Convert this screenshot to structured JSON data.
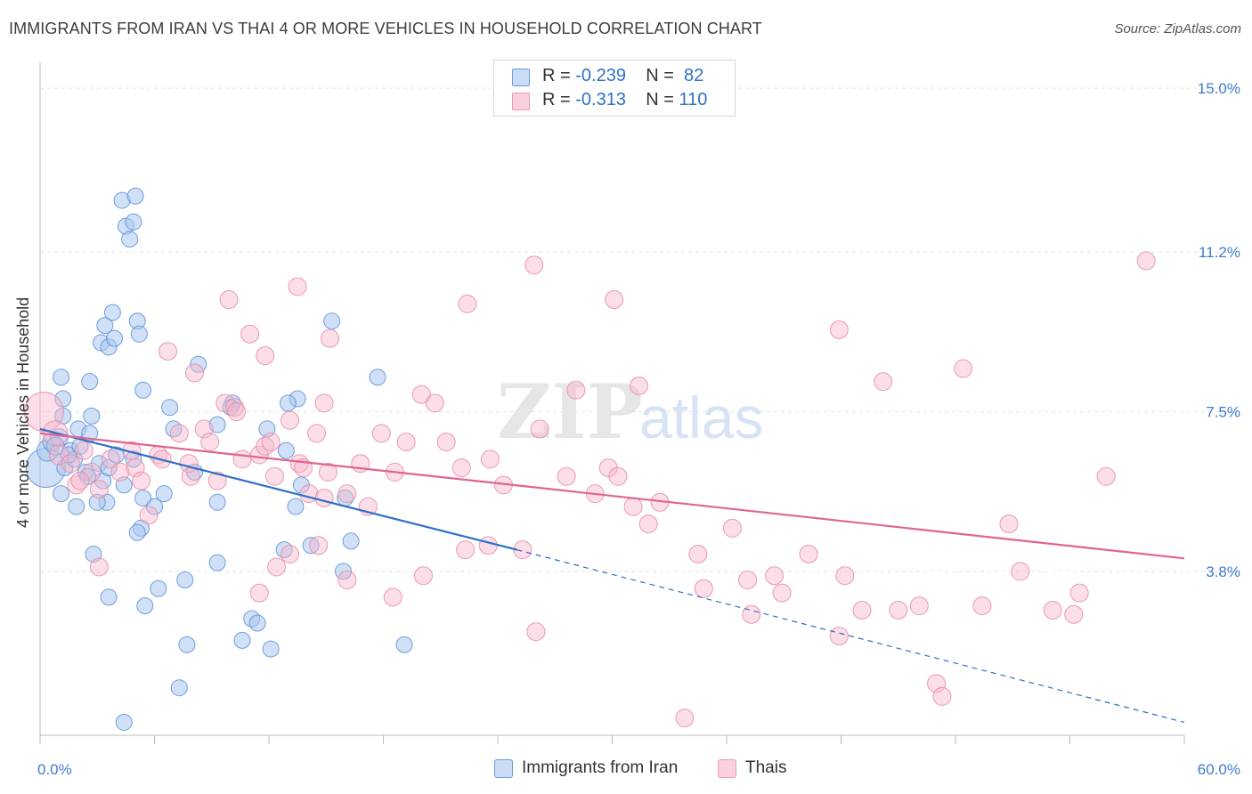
{
  "title": "IMMIGRANTS FROM IRAN VS THAI 4 OR MORE VEHICLES IN HOUSEHOLD CORRELATION CHART",
  "source": "Source: ZipAtlas.com",
  "watermark": {
    "zip": "ZIP",
    "atlas": "atlas"
  },
  "legend": {
    "rows": [
      {
        "r_label": "R = ",
        "r_value": "-0.239",
        "n_label": "N = ",
        "n_value": "82",
        "color": "#a9c6f0"
      },
      {
        "r_label": "R = ",
        "r_value": "-0.313",
        "n_label": "N = ",
        "n_value": "110",
        "color": "#f6b5c9"
      }
    ]
  },
  "chart_data": {
    "type": "scatter",
    "xlabel": "",
    "ylabel": "4 or more Vehicles in Household",
    "xlim": [
      0,
      60
    ],
    "ylim": [
      0,
      15.6
    ],
    "x_tick_labels": [
      {
        "value": 0,
        "label": "0.0%"
      },
      {
        "value": 60,
        "label": "60.0%"
      }
    ],
    "y_tick_labels": [
      {
        "value": 3.8,
        "label": "3.8%"
      },
      {
        "value": 7.5,
        "label": "7.5%"
      },
      {
        "value": 11.2,
        "label": "11.2%"
      },
      {
        "value": 15.0,
        "label": "15.0%"
      }
    ],
    "grid": "horizontal dashed",
    "legend_position": "top-center",
    "series": [
      {
        "name": "Immigrants from Iran",
        "color": "#a9c6f0",
        "stroke": "#5a8fd8",
        "trend": {
          "x0": 0,
          "y0": 7.1,
          "x1": 25,
          "y1": 4.3,
          "dash_to_x": 60,
          "dash_to_y": 0.3,
          "color": "#2f6fc7"
        },
        "points": [
          [
            0.3,
            6.2,
            22
          ],
          [
            0.4,
            6.6,
            12
          ],
          [
            0.6,
            6.8,
            10
          ],
          [
            1.0,
            6.9,
            10
          ],
          [
            0.8,
            6.7,
            10
          ],
          [
            1.2,
            7.4,
            9
          ],
          [
            1.6,
            6.6,
            9
          ],
          [
            1.3,
            6.2,
            9
          ],
          [
            1.8,
            6.4,
            9
          ],
          [
            1.1,
            5.6,
            9
          ],
          [
            1.5,
            6.5,
            9
          ],
          [
            2.1,
            6.7,
            9
          ],
          [
            2.0,
            7.1,
            9
          ],
          [
            1.9,
            5.3,
            9
          ],
          [
            2.4,
            6.1,
            9
          ],
          [
            3.3,
            5.9,
            9
          ],
          [
            2.5,
            6.0,
            9
          ],
          [
            3.1,
            6.3,
            9
          ],
          [
            3.6,
            6.2,
            9
          ],
          [
            4.0,
            6.5,
            9
          ],
          [
            4.4,
            5.8,
            9
          ],
          [
            3.5,
            5.4,
            9
          ],
          [
            3.0,
            5.4,
            9
          ],
          [
            2.7,
            7.4,
            9
          ],
          [
            2.6,
            7.0,
            9
          ],
          [
            1.1,
            8.3,
            9
          ],
          [
            1.2,
            7.8,
            9
          ],
          [
            2.6,
            8.2,
            9
          ],
          [
            3.2,
            9.1,
            9
          ],
          [
            3.6,
            9.0,
            9
          ],
          [
            3.4,
            9.5,
            9
          ],
          [
            3.9,
            9.2,
            9
          ],
          [
            3.8,
            9.8,
            9
          ],
          [
            5.1,
            9.6,
            9
          ],
          [
            5.2,
            9.3,
            9
          ],
          [
            4.3,
            12.4,
            9
          ],
          [
            5.0,
            12.5,
            9
          ],
          [
            4.5,
            11.8,
            9
          ],
          [
            4.9,
            11.9,
            9
          ],
          [
            4.7,
            11.5,
            9
          ],
          [
            5.4,
            8.0,
            9
          ],
          [
            6.8,
            7.6,
            9
          ],
          [
            7.0,
            7.1,
            9
          ],
          [
            8.3,
            8.6,
            9
          ],
          [
            10.1,
            7.7,
            9
          ],
          [
            10.0,
            7.6,
            9
          ],
          [
            9.3,
            7.2,
            9
          ],
          [
            8.1,
            6.1,
            9
          ],
          [
            6.5,
            5.6,
            9
          ],
          [
            6.0,
            5.3,
            9
          ],
          [
            5.4,
            5.5,
            9
          ],
          [
            5.3,
            4.8,
            9
          ],
          [
            5.1,
            4.7,
            9
          ],
          [
            9.3,
            5.4,
            9
          ],
          [
            11.9,
            7.1,
            9
          ],
          [
            12.9,
            6.6,
            9
          ],
          [
            13.5,
            7.8,
            9
          ],
          [
            13.0,
            7.7,
            9
          ],
          [
            15.3,
            9.6,
            9
          ],
          [
            16.0,
            5.5,
            9
          ],
          [
            13.7,
            5.8,
            9
          ],
          [
            13.4,
            5.3,
            9
          ],
          [
            12.8,
            4.3,
            9
          ],
          [
            14.2,
            4.4,
            9
          ],
          [
            16.3,
            4.5,
            9
          ],
          [
            17.7,
            8.3,
            9
          ],
          [
            2.8,
            4.2,
            9
          ],
          [
            3.6,
            3.2,
            9
          ],
          [
            5.5,
            3.0,
            9
          ],
          [
            6.2,
            3.4,
            9
          ],
          [
            7.6,
            3.6,
            9
          ],
          [
            9.3,
            4.0,
            9
          ],
          [
            11.1,
            2.7,
            9
          ],
          [
            11.4,
            2.6,
            9
          ],
          [
            10.6,
            2.2,
            9
          ],
          [
            12.1,
            2.0,
            9
          ],
          [
            15.9,
            3.8,
            9
          ],
          [
            7.7,
            2.1,
            9
          ],
          [
            19.1,
            2.1,
            9
          ],
          [
            7.3,
            1.1,
            9
          ],
          [
            4.4,
            0.3,
            9
          ],
          [
            4.9,
            6.4,
            9
          ]
        ]
      },
      {
        "name": "Thais",
        "color": "#f6b5c9",
        "stroke": "#e88aa7",
        "trend": {
          "x0": 0,
          "y0": 7.0,
          "x1": 60,
          "y1": 4.1,
          "color": "#e0648f"
        },
        "points": [
          [
            0.2,
            7.5,
            22
          ],
          [
            0.8,
            7.0,
            14
          ],
          [
            1.0,
            6.5,
            11
          ],
          [
            1.6,
            6.3,
            10
          ],
          [
            1.9,
            5.8,
            10
          ],
          [
            2.3,
            6.6,
            10
          ],
          [
            2.7,
            6.1,
            10
          ],
          [
            2.1,
            5.9,
            10
          ],
          [
            3.1,
            5.7,
            10
          ],
          [
            3.7,
            6.4,
            10
          ],
          [
            4.2,
            6.1,
            10
          ],
          [
            4.8,
            6.6,
            10
          ],
          [
            5.0,
            6.2,
            10
          ],
          [
            5.3,
            5.9,
            10
          ],
          [
            5.7,
            5.1,
            10
          ],
          [
            3.1,
            3.9,
            10
          ],
          [
            6.2,
            6.5,
            10
          ],
          [
            6.4,
            6.4,
            10
          ],
          [
            7.3,
            7.0,
            10
          ],
          [
            7.8,
            6.3,
            10
          ],
          [
            7.9,
            6.0,
            10
          ],
          [
            8.6,
            7.1,
            10
          ],
          [
            8.9,
            6.8,
            10
          ],
          [
            9.3,
            5.9,
            10
          ],
          [
            9.7,
            7.7,
            10
          ],
          [
            10.2,
            7.6,
            10
          ],
          [
            10.3,
            7.5,
            10
          ],
          [
            10.6,
            6.4,
            10
          ],
          [
            11.5,
            6.5,
            10
          ],
          [
            11.8,
            6.7,
            10
          ],
          [
            12.1,
            6.8,
            10
          ],
          [
            13.1,
            7.3,
            10
          ],
          [
            12.3,
            6.0,
            10
          ],
          [
            13.6,
            6.3,
            10
          ],
          [
            14.5,
            7.0,
            10
          ],
          [
            14.9,
            7.7,
            10
          ],
          [
            15.1,
            6.1,
            10
          ],
          [
            14.1,
            5.6,
            10
          ],
          [
            13.8,
            6.2,
            10
          ],
          [
            14.9,
            5.5,
            10
          ],
          [
            16.1,
            5.6,
            10
          ],
          [
            16.8,
            6.3,
            10
          ],
          [
            17.9,
            7.0,
            10
          ],
          [
            18.6,
            6.1,
            10
          ],
          [
            17.2,
            5.3,
            10
          ],
          [
            19.2,
            6.8,
            10
          ],
          [
            20.0,
            7.9,
            10
          ],
          [
            21.3,
            6.8,
            10
          ],
          [
            20.7,
            7.7,
            10
          ],
          [
            22.1,
            6.2,
            10
          ],
          [
            23.6,
            6.4,
            10
          ],
          [
            24.3,
            5.8,
            10
          ],
          [
            25.3,
            4.3,
            10
          ],
          [
            26.2,
            7.1,
            10
          ],
          [
            27.6,
            6.0,
            10
          ],
          [
            28.1,
            8.0,
            10
          ],
          [
            29.1,
            5.6,
            10
          ],
          [
            29.8,
            6.2,
            10
          ],
          [
            30.3,
            6.0,
            10
          ],
          [
            31.1,
            5.3,
            10
          ],
          [
            31.9,
            4.9,
            10
          ],
          [
            32.5,
            5.4,
            10
          ],
          [
            34.5,
            4.2,
            10
          ],
          [
            34.8,
            3.4,
            10
          ],
          [
            36.3,
            4.8,
            10
          ],
          [
            37.1,
            3.6,
            10
          ],
          [
            38.5,
            3.7,
            10
          ],
          [
            38.9,
            3.3,
            10
          ],
          [
            40.3,
            4.2,
            10
          ],
          [
            41.9,
            9.4,
            10
          ],
          [
            42.2,
            3.7,
            10
          ],
          [
            43.1,
            2.9,
            10
          ],
          [
            44.2,
            8.2,
            10
          ],
          [
            45.0,
            2.9,
            10
          ],
          [
            46.1,
            3.0,
            10
          ],
          [
            48.4,
            8.5,
            10
          ],
          [
            49.4,
            3.0,
            10
          ],
          [
            50.8,
            4.9,
            10
          ],
          [
            51.4,
            3.8,
            10
          ],
          [
            53.1,
            2.9,
            10
          ],
          [
            54.2,
            2.8,
            10
          ],
          [
            54.5,
            3.3,
            10
          ],
          [
            55.9,
            6.0,
            10
          ],
          [
            58.0,
            11.0,
            10
          ],
          [
            47.0,
            1.2,
            10
          ],
          [
            47.3,
            0.9,
            10
          ],
          [
            41.9,
            2.3,
            10
          ],
          [
            37.3,
            2.8,
            10
          ],
          [
            33.8,
            0.4,
            10
          ],
          [
            26.0,
            2.4,
            10
          ],
          [
            23.5,
            4.4,
            10
          ],
          [
            22.3,
            4.3,
            10
          ],
          [
            20.1,
            3.7,
            10
          ],
          [
            18.5,
            3.2,
            10
          ],
          [
            16.1,
            3.6,
            10
          ],
          [
            14.6,
            4.4,
            10
          ],
          [
            13.1,
            4.2,
            10
          ],
          [
            12.4,
            3.9,
            10
          ],
          [
            11.5,
            3.3,
            10
          ],
          [
            22.4,
            10.0,
            10
          ],
          [
            15.2,
            9.2,
            10
          ],
          [
            13.5,
            10.4,
            10
          ],
          [
            11.8,
            8.8,
            10
          ],
          [
            11.0,
            9.3,
            10
          ],
          [
            9.9,
            10.1,
            10
          ],
          [
            8.1,
            8.4,
            10
          ],
          [
            6.7,
            8.9,
            10
          ],
          [
            25.9,
            10.9,
            10
          ],
          [
            30.1,
            10.1,
            10
          ],
          [
            31.4,
            8.1,
            10
          ]
        ]
      }
    ]
  }
}
